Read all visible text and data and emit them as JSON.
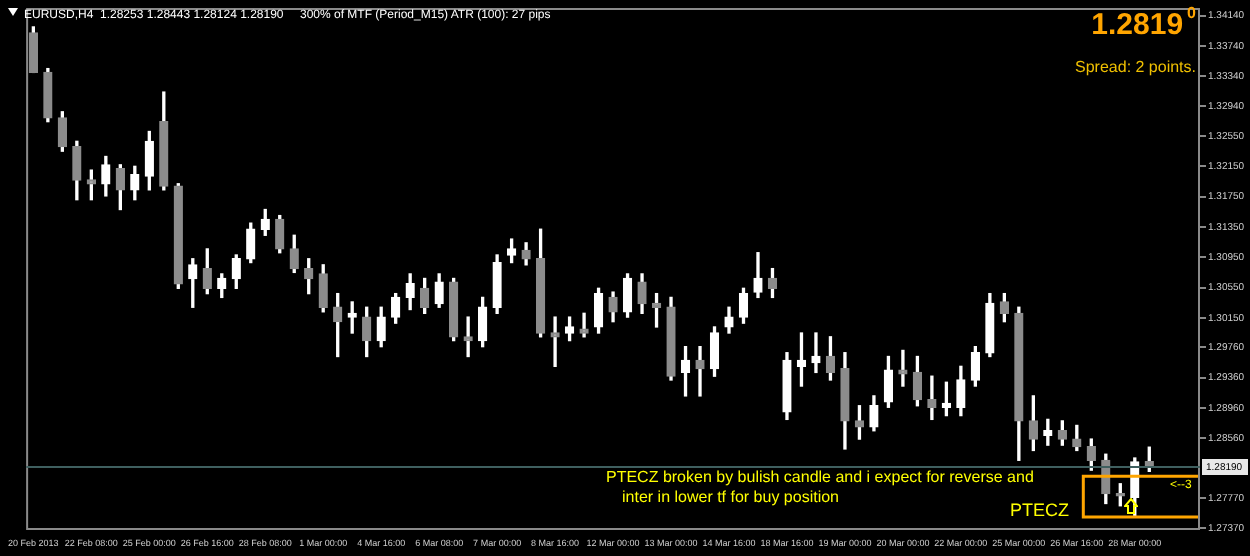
{
  "chart_data": {
    "type": "candlestick",
    "title": "EURUSD,H4  1.28253 1.28443 1.28124 1.28190",
    "categories": [
      "20 Feb 2013",
      null,
      null,
      null,
      "22 Feb 08:00",
      null,
      null,
      null,
      "25 Feb 00:00",
      null,
      null,
      null,
      "26 Feb 16:00",
      null,
      null,
      null,
      "28 Feb 08:00",
      null,
      null,
      null,
      "1 Mar 00:00",
      null,
      null,
      null,
      "4 Mar 16:00",
      null,
      null,
      null,
      "6 Mar 08:00",
      null,
      null,
      null,
      "7 Mar 00:00",
      null,
      null,
      null,
      "8 Mar 16:00",
      null,
      null,
      null,
      "12 Mar 00:00",
      null,
      null,
      null,
      "13 Mar 00:00",
      null,
      null,
      null,
      "14 Mar 16:00",
      null,
      null,
      null,
      "18 Mar 16:00",
      null,
      null,
      null,
      "19 Mar 00:00",
      null,
      null,
      null,
      "20 Mar 00:00",
      null,
      null,
      null,
      "22 Mar 00:00",
      null,
      null,
      null,
      "25 Mar 00:00",
      null,
      null,
      null,
      "26 Mar 16:00",
      null,
      null,
      null,
      "28 Mar 00:00",
      null,
      null,
      null,
      null
    ],
    "ohlc": [
      [
        1.3391,
        1.3399,
        1.3339,
        1.3339
      ],
      [
        1.3339,
        1.3344,
        1.3274,
        1.3279
      ],
      [
        1.3279,
        1.3287,
        1.3235,
        1.3241
      ],
      [
        1.3241,
        1.3248,
        1.3171,
        1.3197
      ],
      [
        1.3197,
        1.321,
        1.3171,
        1.3192
      ],
      [
        1.3192,
        1.3228,
        1.3176,
        1.3217
      ],
      [
        1.3212,
        1.3217,
        1.3158,
        1.3184
      ],
      [
        1.3184,
        1.3215,
        1.3171,
        1.3204
      ],
      [
        1.3202,
        1.3261,
        1.3184,
        1.3248
      ],
      [
        1.3274,
        1.3313,
        1.3184,
        1.3189
      ],
      [
        1.3189,
        1.3192,
        1.3054,
        1.306
      ],
      [
        1.3067,
        1.3093,
        1.3029,
        1.3085
      ],
      [
        1.308,
        1.3106,
        1.3047,
        1.3054
      ],
      [
        1.3054,
        1.3073,
        1.3042,
        1.3067
      ],
      [
        1.3067,
        1.3098,
        1.3054,
        1.3093
      ],
      [
        1.3093,
        1.314,
        1.3088,
        1.3132
      ],
      [
        1.3132,
        1.3158,
        1.3124,
        1.3145
      ],
      [
        1.3145,
        1.315,
        1.3101,
        1.3106
      ],
      [
        1.3106,
        1.3124,
        1.3075,
        1.308
      ],
      [
        1.308,
        1.3093,
        1.3047,
        1.3067
      ],
      [
        1.3073,
        1.3085,
        1.3023,
        1.3029
      ],
      [
        1.3029,
        1.3047,
        1.2964,
        1.301
      ],
      [
        1.3016,
        1.3036,
        1.2995,
        1.3021
      ],
      [
        1.3016,
        1.3029,
        1.2964,
        1.2985
      ],
      [
        1.2985,
        1.3029,
        1.2977,
        1.3016
      ],
      [
        1.3016,
        1.3047,
        1.3008,
        1.3042
      ],
      [
        1.3042,
        1.3073,
        1.3026,
        1.306
      ],
      [
        1.3054,
        1.3067,
        1.3021,
        1.3029
      ],
      [
        1.3034,
        1.3073,
        1.3029,
        1.3062
      ],
      [
        1.3062,
        1.3067,
        1.2985,
        1.299
      ],
      [
        1.299,
        1.3016,
        1.2964,
        1.2985
      ],
      [
        1.2985,
        1.3042,
        1.2977,
        1.3029
      ],
      [
        1.3029,
        1.3098,
        1.3021,
        1.3088
      ],
      [
        1.3098,
        1.3119,
        1.3088,
        1.3106
      ],
      [
        1.3104,
        1.3114,
        1.3085,
        1.3093
      ],
      [
        1.3093,
        1.3132,
        1.299,
        1.2995
      ],
      [
        1.2995,
        1.3016,
        1.2951,
        1.299
      ],
      [
        1.2995,
        1.3016,
        1.2985,
        1.3003
      ],
      [
        1.3,
        1.3021,
        1.299,
        1.2995
      ],
      [
        1.3003,
        1.3054,
        1.2995,
        1.3047
      ],
      [
        1.3042,
        1.3049,
        1.301,
        1.3023
      ],
      [
        1.3023,
        1.3073,
        1.3016,
        1.3067
      ],
      [
        1.3062,
        1.3073,
        1.3021,
        1.3034
      ],
      [
        1.3034,
        1.3047,
        1.3003,
        1.3029
      ],
      [
        1.3029,
        1.3042,
        1.2933,
        1.2938
      ],
      [
        1.2943,
        1.2977,
        1.2912,
        1.2959
      ],
      [
        1.2959,
        1.2977,
        1.2912,
        1.2948
      ],
      [
        1.2948,
        1.3003,
        1.2938,
        1.2995
      ],
      [
        1.3003,
        1.3029,
        1.2995,
        1.3016
      ],
      [
        1.3016,
        1.3054,
        1.3008,
        1.3047
      ],
      [
        1.3049,
        1.3101,
        1.3042,
        1.3067
      ],
      [
        1.3067,
        1.308,
        1.3042,
        1.3054
      ],
      [
        1.2891,
        1.2969,
        1.2881,
        1.2959
      ],
      [
        1.2951,
        1.2995,
        1.2925,
        1.2959
      ],
      [
        1.2956,
        1.2995,
        1.2943,
        1.2964
      ],
      [
        1.2964,
        1.299,
        1.2933,
        1.2943
      ],
      [
        1.2948,
        1.2969,
        1.2842,
        1.2879
      ],
      [
        1.2879,
        1.2899,
        1.2855,
        1.2871
      ],
      [
        1.2871,
        1.2912,
        1.2866,
        1.2899
      ],
      [
        1.2904,
        1.2964,
        1.2897,
        1.2946
      ],
      [
        1.2946,
        1.2972,
        1.2925,
        1.2941
      ],
      [
        1.2943,
        1.2964,
        1.2899,
        1.2907
      ],
      [
        1.2907,
        1.2938,
        1.2881,
        1.2897
      ],
      [
        1.2897,
        1.293,
        1.2886,
        1.2902
      ],
      [
        1.2897,
        1.2951,
        1.2886,
        1.2933
      ],
      [
        1.2933,
        1.2977,
        1.2925,
        1.2969
      ],
      [
        1.2969,
        1.3047,
        1.2964,
        1.3034
      ],
      [
        1.3036,
        1.3047,
        1.301,
        1.3021
      ],
      [
        1.3021,
        1.3029,
        1.2827,
        1.2879
      ],
      [
        1.2879,
        1.2912,
        1.284,
        1.2855
      ],
      [
        1.286,
        1.2881,
        1.2847,
        1.2866
      ],
      [
        1.2866,
        1.2879,
        1.2847,
        1.2855
      ],
      [
        1.2855,
        1.2873,
        1.284,
        1.2845
      ],
      [
        1.2845,
        1.2855,
        1.2814,
        1.2827
      ],
      [
        1.2827,
        1.2835,
        1.277,
        1.2783
      ],
      [
        1.2783,
        1.2796,
        1.2767,
        1.278
      ],
      [
        1.2778,
        1.283,
        1.2752,
        1.2825
      ],
      [
        1.28253,
        1.28443,
        1.28124,
        1.2819
      ],
      null,
      null,
      null
    ],
    "ylim": [
      1.2735,
      1.3424
    ],
    "yticks": [
      {
        "value": 1.3414,
        "label": "1.34140"
      },
      {
        "value": 1.3374,
        "label": "1.33740"
      },
      {
        "value": 1.3334,
        "label": "1.33340"
      },
      {
        "value": 1.3294,
        "label": "1.32940"
      },
      {
        "value": 1.3255,
        "label": "1.32550"
      },
      {
        "value": 1.3215,
        "label": "1.32150"
      },
      {
        "value": 1.3175,
        "label": "1.31750"
      },
      {
        "value": 1.3135,
        "label": "1.31350"
      },
      {
        "value": 1.3095,
        "label": "1.30950"
      },
      {
        "value": 1.3055,
        "label": "1.30550"
      },
      {
        "value": 1.3015,
        "label": "1.30150"
      },
      {
        "value": 1.2976,
        "label": "1.29760"
      },
      {
        "value": 1.2936,
        "label": "1.29360"
      },
      {
        "value": 1.2896,
        "label": "1.28960"
      },
      {
        "value": 1.2856,
        "label": "1.28560"
      },
      {
        "value": 1.2777,
        "label": "1.27770"
      },
      {
        "value": 1.2737,
        "label": "1.27370"
      }
    ],
    "ref_lines": [
      {
        "axis": "y",
        "value": 1.2819,
        "label": "1.28190",
        "color": "#3f5f5f"
      }
    ],
    "annotations": [
      "300% of MTF (Period_M15) ATR (100): 27 pips",
      "1.2819$^{0}$",
      "Spread: 2 points.",
      "PTECZ broken by bulish candle and i expect for reverse and\ninter in lower tf for buy position",
      "PTECZ",
      "<--3"
    ],
    "grid": false,
    "legend": false
  }
}
